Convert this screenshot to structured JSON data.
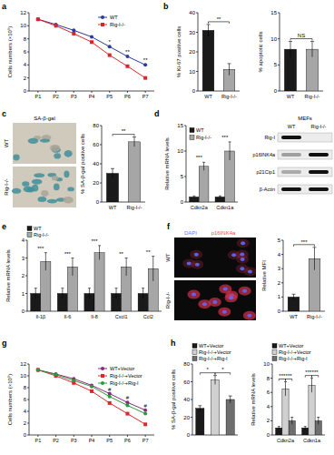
{
  "chart_data": [
    {
      "panel": "a",
      "type": "line",
      "ylabel": "Cells numbers (×10⁵)",
      "categories": [
        "P1",
        "P2",
        "P3",
        "P4",
        "P5",
        "P6",
        "P7"
      ],
      "ylim": [
        0,
        12
      ],
      "yticks": [
        0,
        2,
        4,
        6,
        8,
        10,
        12
      ],
      "legend": "upper right",
      "series": [
        {
          "name": "WT",
          "color": "#2b3a9c",
          "marker": "circle",
          "values": [
            11.0,
            10.2,
            9.3,
            8.3,
            6.8,
            5.3,
            4.0
          ]
        },
        {
          "name": "Rig-I-/-",
          "color": "#d7262b",
          "marker": "square",
          "values": [
            11.0,
            10.0,
            8.8,
            7.5,
            5.5,
            3.8,
            2.0
          ]
        }
      ],
      "annotations": [
        null,
        null,
        null,
        null,
        "*",
        "**",
        "**"
      ]
    },
    {
      "panel": "b",
      "type": "bar",
      "ylabel": "% Ki-67 positive cells",
      "categories": [
        "WT",
        "Rig-I-/-"
      ],
      "values": [
        31,
        11
      ],
      "errors": [
        3,
        3
      ],
      "colors": [
        "#1a1a1a",
        "#a6a6a6"
      ],
      "ylim": [
        0,
        40
      ],
      "yticks": [
        0,
        10,
        20,
        30,
        40
      ],
      "brackets": [
        {
          "text": "**",
          "between": [
            0,
            1
          ]
        }
      ]
    },
    {
      "type": "bar",
      "ylabel": "% apoptotic cells",
      "categories": [
        "WT",
        "Rig-I-/-"
      ],
      "values": [
        8,
        8
      ],
      "errors": [
        1.5,
        1.5
      ],
      "colors": [
        "#1a1a1a",
        "#a6a6a6"
      ],
      "ylim": [
        0,
        15
      ],
      "yticks": [
        0,
        5,
        10,
        15
      ],
      "brackets": [
        {
          "text": "NS",
          "between": [
            0,
            1
          ]
        }
      ]
    },
    {
      "panel": "c",
      "type": "bar",
      "ylabel": "% SA-β-gal positive cells",
      "categories": [
        "WT",
        "Rig-I-/-"
      ],
      "values": [
        30,
        63
      ],
      "errors": [
        5,
        5
      ],
      "colors": [
        "#1a1a1a",
        "#a6a6a6"
      ],
      "ylim": [
        0,
        80
      ],
      "yticks": [
        0,
        20,
        40,
        60,
        80
      ],
      "brackets": [
        {
          "text": "**",
          "between": [
            0,
            1
          ]
        }
      ]
    },
    {
      "panel": "d",
      "type": "bar",
      "ylabel": "Relative mRNA levels",
      "categories": [
        "Cdkn2a",
        "Cdkn1a"
      ],
      "ylim": [
        0,
        15
      ],
      "yticks": [
        0,
        5,
        10,
        15
      ],
      "legend": "upper left",
      "series": [
        {
          "name": "WT",
          "color": "#1a1a1a",
          "values": [
            1,
            1
          ],
          "errors": [
            0.2,
            0.2
          ]
        },
        {
          "name": "Rig-I-/-",
          "color": "#a6a6a6",
          "values": [
            7,
            10
          ],
          "errors": [
            0.8,
            1.8
          ]
        }
      ],
      "annotations": [
        "***",
        "***"
      ]
    },
    {
      "panel": "e",
      "type": "bar",
      "ylabel": "Relative mRNA levels",
      "categories": [
        "Il-1β",
        "Il-6",
        "Il-8",
        "Cxcl1",
        "Ccl2"
      ],
      "ylim": [
        0,
        4
      ],
      "yticks": [
        0,
        1,
        2,
        3,
        4
      ],
      "legend": "top",
      "series": [
        {
          "name": "WT",
          "color": "#1a1a1a",
          "values": [
            1,
            1,
            1,
            1,
            1
          ],
          "errors": [
            0.3,
            0.3,
            0.3,
            0.3,
            0.3
          ]
        },
        {
          "name": "Rig-I-/-",
          "color": "#a6a6a6",
          "values": [
            2.8,
            2.5,
            3.3,
            2.5,
            2.4
          ],
          "errors": [
            0.5,
            0.5,
            0.4,
            0.5,
            0.7
          ]
        }
      ],
      "annotations": [
        "***",
        "***",
        "***",
        "**",
        "**"
      ]
    },
    {
      "panel": "f",
      "type": "bar",
      "ylabel": "Relative MFI",
      "categories": [
        "WT",
        "Rig-I-/-"
      ],
      "values": [
        1,
        3.7
      ],
      "errors": [
        0.2,
        0.8
      ],
      "colors": [
        "#1a1a1a",
        "#a6a6a6"
      ],
      "ylim": [
        0,
        5
      ],
      "yticks": [
        0,
        1,
        2,
        3,
        4,
        5
      ],
      "brackets": [
        {
          "text": "***",
          "between": [
            0,
            1
          ]
        }
      ]
    },
    {
      "panel": "g",
      "type": "line",
      "ylabel": "Cells numbers (×10⁵)",
      "categories": [
        "P1",
        "P2",
        "P3",
        "P4",
        "P5",
        "P6",
        "P7"
      ],
      "ylim": [
        0,
        12
      ],
      "yticks": [
        0,
        2,
        4,
        6,
        8,
        10,
        12
      ],
      "legend": "upper right",
      "series": [
        {
          "name": "WT+Vector",
          "color": "#8b2a7a",
          "marker": "circle",
          "values": [
            11.0,
            10.3,
            9.5,
            8.4,
            7.0,
            5.5,
            4.2
          ]
        },
        {
          "name": "Rig-I-/-+Vector",
          "color": "#e0262b",
          "marker": "square",
          "values": [
            11.0,
            10.0,
            8.8,
            7.4,
            5.4,
            3.6,
            1.8
          ]
        },
        {
          "name": "Rig-I-/-+Rig-I",
          "color": "#2a9a3a",
          "marker": "circle",
          "values": [
            11.0,
            10.2,
            9.2,
            8.2,
            6.5,
            5.0,
            3.6
          ]
        }
      ],
      "annotations": [
        null,
        null,
        null,
        null,
        "#",
        "#",
        "#"
      ]
    },
    {
      "panel": "h",
      "type": "bar",
      "ylabel": "% SA-β-gal positive cells",
      "categories": [
        "WT+Vector",
        "Rig-I-/-+Vector",
        "Rig-I-/-+Rig-I"
      ],
      "values": [
        30,
        62,
        40
      ],
      "errors": [
        3,
        5,
        4
      ],
      "colors": [
        "#1a1a1a",
        "#d0d0d0",
        "#6e6e6e"
      ],
      "ylim": [
        0,
        80
      ],
      "yticks": [
        0,
        20,
        40,
        60,
        80
      ],
      "tick_labels": "y",
      "legend": "top",
      "brackets": [
        {
          "text": "*",
          "between": [
            0,
            1
          ]
        },
        {
          "text": "*",
          "between": [
            1,
            2
          ]
        }
      ]
    },
    {
      "type": "bar",
      "ylabel": "Relative mRNA levels",
      "categories": [
        "Cdkn2a",
        "Cdkn1a"
      ],
      "ylim": [
        0,
        10
      ],
      "yticks": [
        0,
        2,
        4,
        6,
        8,
        10
      ],
      "legend": "top",
      "series": [
        {
          "name": "WT+Vector",
          "color": "#1a1a1a",
          "values": [
            1,
            1
          ],
          "errors": [
            0.2,
            0.2
          ]
        },
        {
          "name": "Rig-I-/-+Vector",
          "color": "#d0d0d0",
          "values": [
            6.5,
            7
          ],
          "errors": [
            1,
            1
          ]
        },
        {
          "name": "Rig-I-/-+Rig-I",
          "color": "#6e6e6e",
          "values": [
            2,
            2
          ],
          "errors": [
            0.5,
            0.5
          ]
        }
      ],
      "brackets": [
        {
          "text": "***",
          "category": 0,
          "between": [
            0,
            1
          ]
        },
        {
          "text": "***",
          "category": 0,
          "between": [
            1,
            2
          ]
        },
        {
          "text": "***",
          "category": 1,
          "between": [
            0,
            1
          ]
        },
        {
          "text": "***",
          "category": 1,
          "between": [
            1,
            2
          ]
        }
      ]
    }
  ],
  "figure": {
    "c_images": {
      "stain": "SA-β-gal",
      "rows": [
        "WT",
        "Rig-I-/-"
      ]
    },
    "blot": {
      "title": "MEFs",
      "lanes": [
        "WT",
        "Rig-I-/-"
      ],
      "rows": [
        "Rig-I",
        "p16INK4a",
        "p21Cip1",
        "β-Actin"
      ]
    },
    "f_images": {
      "channels": [
        "DAPI",
        "p16INK4a"
      ],
      "rows": [
        "WT",
        "Rig-I-/-"
      ]
    }
  }
}
